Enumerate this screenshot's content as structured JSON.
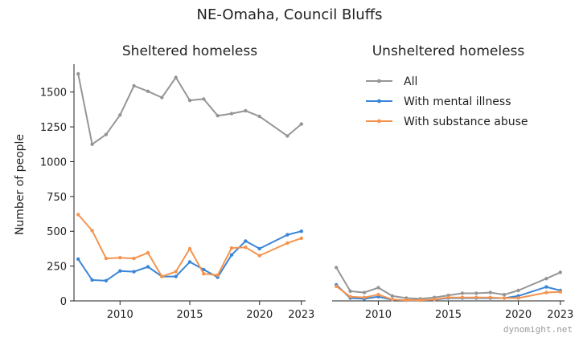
{
  "chart_data": {
    "type": "line",
    "title": "NE-Omaha, Council Bluffs",
    "ylabel": "Number of people",
    "xlim": [
      2006.7,
      2023.3
    ],
    "ylim": [
      0,
      1700
    ],
    "x_ticks": [
      2010,
      2015,
      2020,
      2023
    ],
    "y_ticks": [
      0,
      250,
      500,
      750,
      1000,
      1250,
      1500
    ],
    "legend": {
      "location": "top-right of right panel",
      "entries": [
        "All",
        "With mental illness",
        "With substance abuse"
      ]
    },
    "colors": {
      "All": "#969696",
      "With mental illness": "#3a85d6",
      "With substance abuse": "#f5944f"
    },
    "watermark": "dynomight.net",
    "panels": [
      {
        "title": "Sheltered homeless",
        "series": [
          {
            "name": "All",
            "x": [
              2007,
              2008,
              2009,
              2010,
              2011,
              2012,
              2013,
              2014,
              2015,
              2016,
              2017,
              2018,
              2019,
              2020,
              2022,
              2023
            ],
            "y": [
              1630,
              1125,
              1195,
              1335,
              1545,
              1505,
              1460,
              1605,
              1440,
              1450,
              1330,
              1345,
              1365,
              1325,
              1185,
              1270
            ]
          },
          {
            "name": "With mental illness",
            "x": [
              2007,
              2008,
              2009,
              2010,
              2011,
              2012,
              2013,
              2014,
              2015,
              2016,
              2017,
              2018,
              2019,
              2020,
              2022,
              2023
            ],
            "y": [
              300,
              150,
              145,
              215,
              210,
              245,
              175,
              175,
              280,
              225,
              170,
              330,
              430,
              375,
              475,
              500
            ]
          },
          {
            "name": "With substance abuse",
            "x": [
              2007,
              2008,
              2009,
              2010,
              2011,
              2012,
              2013,
              2014,
              2015,
              2016,
              2017,
              2018,
              2019,
              2020,
              2022,
              2023
            ],
            "y": [
              620,
              505,
              305,
              310,
              305,
              345,
              175,
              210,
              375,
              195,
              185,
              380,
              385,
              325,
              415,
              450
            ]
          }
        ]
      },
      {
        "title": "Unsheltered homeless",
        "series": [
          {
            "name": "All",
            "x": [
              2007,
              2008,
              2009,
              2010,
              2011,
              2012,
              2013,
              2014,
              2015,
              2016,
              2017,
              2018,
              2019,
              2020,
              2022,
              2023
            ],
            "y": [
              240,
              70,
              60,
              95,
              35,
              20,
              15,
              25,
              40,
              55,
              55,
              60,
              45,
              75,
              160,
              205
            ]
          },
          {
            "name": "With mental illness",
            "x": [
              2007,
              2008,
              2009,
              2010,
              2011,
              2012,
              2013,
              2014,
              2015,
              2016,
              2017,
              2018,
              2019,
              2020,
              2022,
              2023
            ],
            "y": [
              115,
              20,
              15,
              30,
              8,
              5,
              5,
              8,
              20,
              20,
              20,
              20,
              20,
              35,
              100,
              75
            ]
          },
          {
            "name": "With substance abuse",
            "x": [
              2007,
              2008,
              2009,
              2010,
              2011,
              2012,
              2013,
              2014,
              2015,
              2016,
              2017,
              2018,
              2019,
              2020,
              2022,
              2023
            ],
            "y": [
              105,
              30,
              25,
              45,
              10,
              5,
              5,
              10,
              25,
              25,
              25,
              25,
              20,
              20,
              60,
              65
            ]
          }
        ]
      }
    ]
  }
}
